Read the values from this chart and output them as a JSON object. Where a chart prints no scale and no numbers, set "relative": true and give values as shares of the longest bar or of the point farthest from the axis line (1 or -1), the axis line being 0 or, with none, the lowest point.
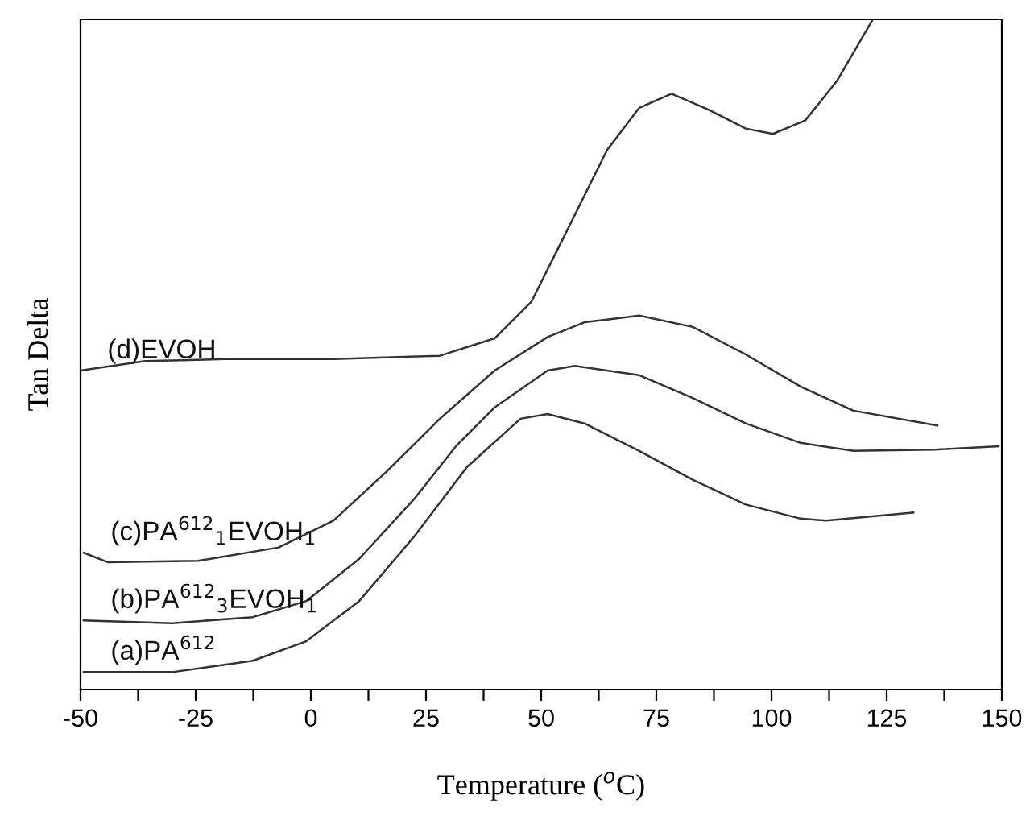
{
  "chart_data": {
    "type": "line",
    "relative": true,
    "xlabel": "Temperature ($^{o}$C)",
    "ylabel": "Tan Delta",
    "xlim": [
      -50,
      150
    ],
    "xticks": [
      -50,
      {
        "value": -37.5,
        "label": null
      },
      -25,
      {
        "value": -12.5,
        "label": null
      },
      0,
      {
        "value": 12.5,
        "label": null
      },
      25,
      {
        "value": 37.5,
        "label": null
      },
      50,
      {
        "value": 62.5,
        "label": null
      },
      75,
      {
        "value": 87.5,
        "label": null
      },
      100,
      {
        "value": 112.5,
        "label": null
      },
      125,
      {
        "value": 137.5,
        "label": null
      },
      150
    ],
    "grid": false,
    "legend": false,
    "marker": "none",
    "line_style": "solid",
    "series": [
      {
        "name": "(d)EVOH",
        "color": "#333333",
        "x": [
          -50,
          -36,
          -18.5,
          4.9,
          28,
          39.9,
          47.9,
          51.4,
          54.9,
          64.3,
          71.3,
          78.3,
          86.4,
          94.4,
          100.3,
          107.3,
          114.3,
          122
        ],
        "values": [
          0.476,
          0.49,
          0.493,
          0.493,
          0.498,
          0.524,
          0.579,
          0.627,
          0.675,
          0.805,
          0.868,
          0.889,
          0.865,
          0.837,
          0.829,
          0.849,
          0.909,
          1
        ]
      },
      {
        "name": "(c)PA$^{612}$$_{1}$EVOH$_{1}$",
        "color": "#333333",
        "x": [
          -49.3,
          -44.1,
          -24.5,
          -7,
          4.9,
          16.4,
          28,
          39.9,
          51.4,
          59.4,
          71.3,
          82.9,
          94.4,
          106.3,
          117.8,
          136
        ],
        "values": [
          0.204,
          0.19,
          0.192,
          0.212,
          0.252,
          0.325,
          0.404,
          0.476,
          0.526,
          0.548,
          0.558,
          0.541,
          0.5,
          0.452,
          0.416,
          0.394
        ]
      },
      {
        "name": "(b)PA$^{612}$$_{3}$EVOH$_{1}$",
        "color": "#333333",
        "x": [
          -49.3,
          -30.1,
          -12.6,
          -1,
          10.5,
          22.4,
          31.5,
          39.9,
          51.4,
          57.3,
          71.3,
          82.9,
          94.4,
          106.3,
          117.8,
          135.3,
          149.3
        ],
        "values": [
          0.103,
          0.099,
          0.108,
          0.132,
          0.195,
          0.284,
          0.363,
          0.421,
          0.476,
          0.483,
          0.469,
          0.435,
          0.397,
          0.368,
          0.356,
          0.358,
          0.363
        ]
      },
      {
        "name": "(a)PA$^{612}$",
        "color": "#333333",
        "x": [
          -49.3,
          -30.1,
          -12.6,
          -1,
          10.5,
          22.4,
          33.9,
          45.5,
          51.4,
          59.4,
          71.3,
          82.9,
          94.4,
          106.3,
          111.9,
          130.8
        ],
        "values": [
          0.026,
          0.026,
          0.043,
          0.072,
          0.132,
          0.228,
          0.332,
          0.404,
          0.411,
          0.397,
          0.356,
          0.313,
          0.276,
          0.255,
          0.252,
          0.264
        ]
      }
    ]
  }
}
